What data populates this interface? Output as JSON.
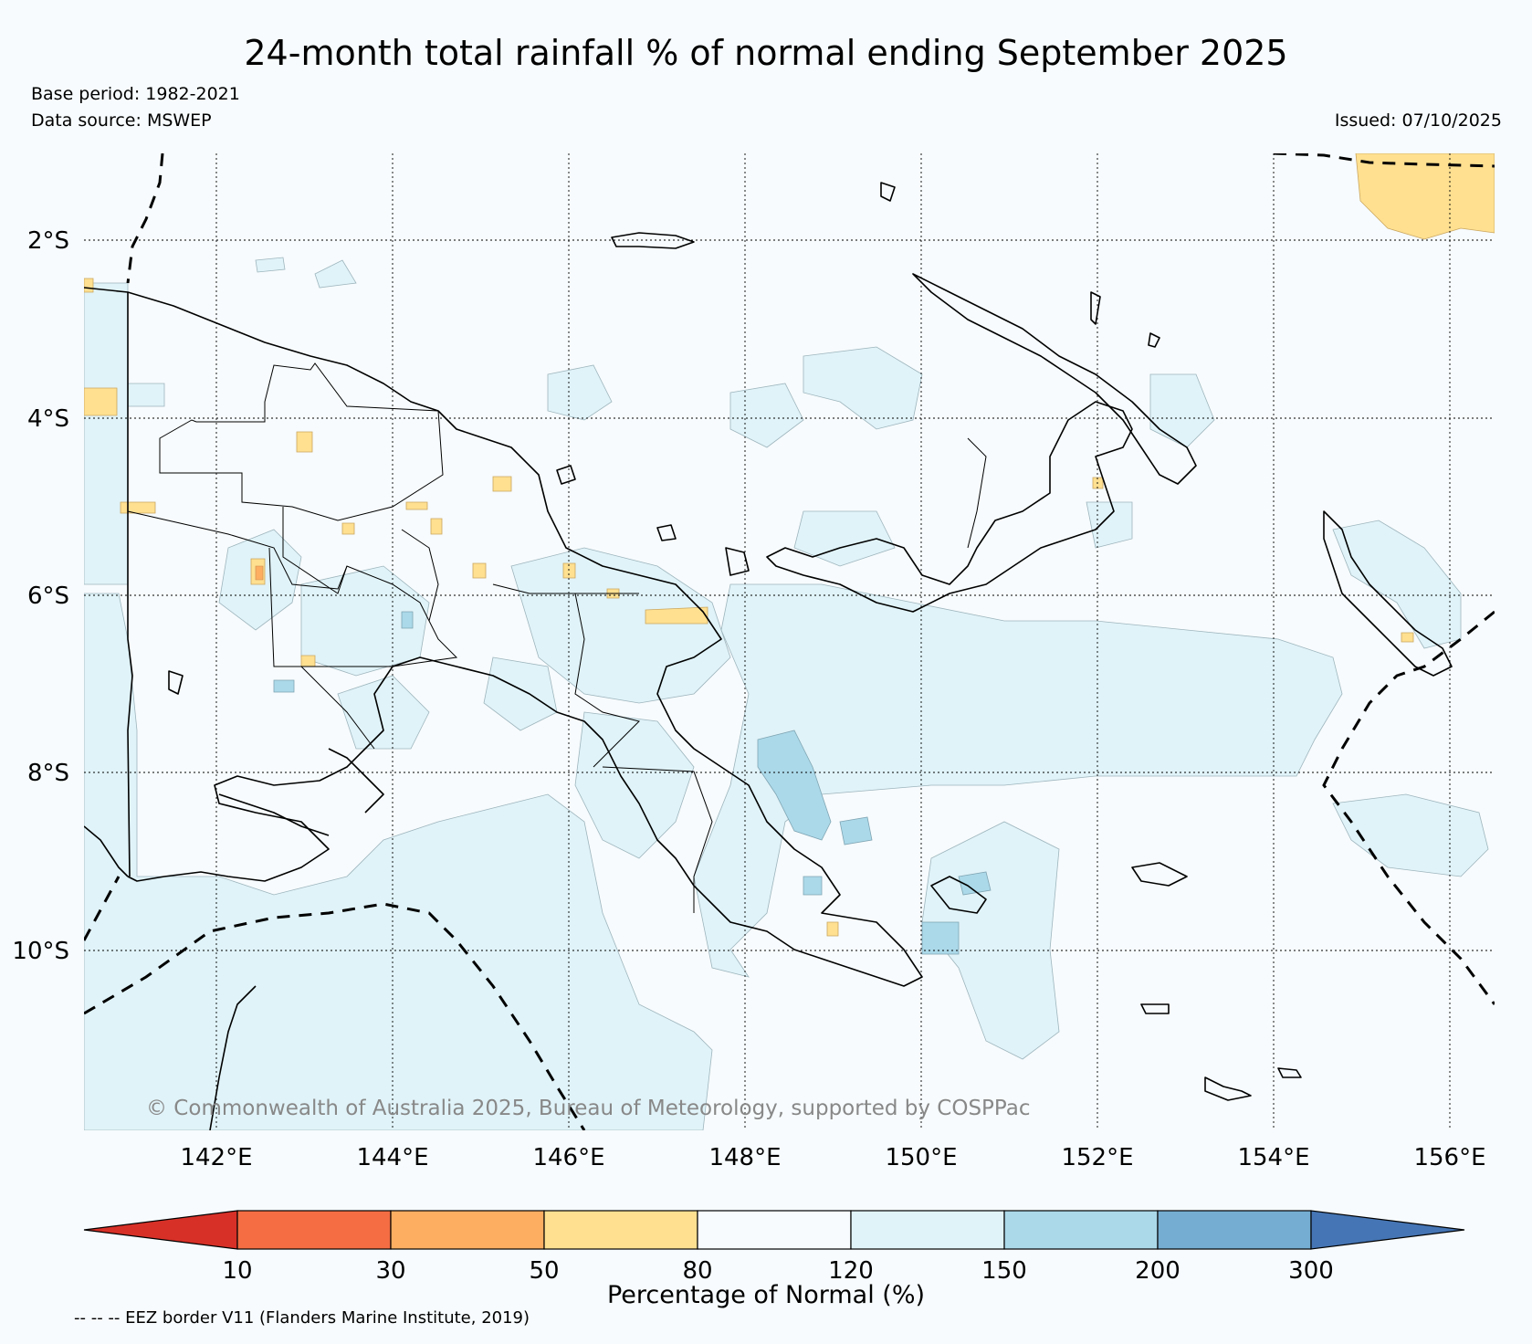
{
  "title": "24-month total rainfall % of normal ending September 2025",
  "base_period": "Base period: 1982-2021",
  "data_source": "Data source: MSWEP",
  "issued": "Issued: 07/10/2025",
  "map": {
    "lat_labels": [
      "2°S",
      "4°S",
      "6°S",
      "8°S",
      "10°S"
    ],
    "lon_labels": [
      "142°E",
      "144°E",
      "146°E",
      "148°E",
      "150°E",
      "152°E",
      "154°E",
      "156°E"
    ]
  },
  "copyright": "© Commonwealth of Australia 2025, Bureau of Meteorology, supported by COSPPac",
  "colorbar": {
    "ticks": [
      "10",
      "30",
      "50",
      "80",
      "120",
      "150",
      "200",
      "300"
    ],
    "colors": [
      "#d73027",
      "#f46d43",
      "#fdae61",
      "#fee090",
      "#f7fbfd",
      "#e0f3f8",
      "#abd9e9",
      "#74add1",
      "#4575b4"
    ],
    "title": "Percentage of Normal (%)"
  },
  "footnote": "-- -- -- EEZ border V11 (Flanders Marine Institute, 2019)"
}
